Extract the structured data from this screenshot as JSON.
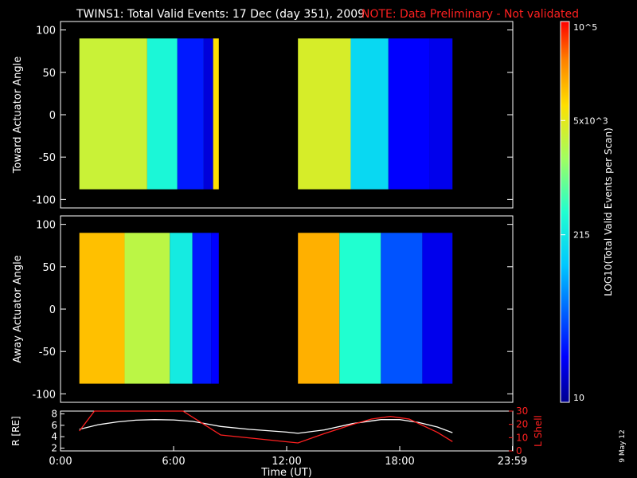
{
  "header": {
    "title": "TWINS1: Total Valid Events: 17 Dec (day 351), 2009",
    "note": "NOTE: Data Preliminary - Not validated",
    "note_color": "#ff2020",
    "stamp": "9 May 12"
  },
  "chart_data": [
    {
      "type": "heatmap",
      "panel": "top",
      "ylabel": "Toward Actuator Angle",
      "ylim": [
        -110,
        110
      ],
      "yticks": [
        "100",
        "50",
        "0",
        "-50",
        "-100"
      ],
      "ytick_values": [
        100,
        50,
        0,
        -50,
        -100
      ],
      "data_angle_range": [
        -88,
        90
      ],
      "data_intervals_hours": [
        [
          1.0,
          8.4
        ],
        [
          12.6,
          20.8
        ]
      ],
      "segments": [
        {
          "t0": 1.0,
          "t1": 4.6,
          "level": 0.7
        },
        {
          "t0": 4.6,
          "t1": 6.2,
          "level": 0.48
        },
        {
          "t0": 6.2,
          "t1": 7.6,
          "level": 0.15
        },
        {
          "t0": 7.6,
          "t1": 8.1,
          "level": 0.08
        },
        {
          "t0": 8.1,
          "t1": 8.4,
          "level": 0.78
        },
        {
          "t0": 12.6,
          "t1": 15.4,
          "level": 0.72
        },
        {
          "t0": 15.4,
          "t1": 17.4,
          "level": 0.4
        },
        {
          "t0": 17.4,
          "t1": 19.6,
          "level": 0.12
        },
        {
          "t0": 19.6,
          "t1": 20.8,
          "level": 0.1
        }
      ]
    },
    {
      "type": "heatmap",
      "panel": "middle",
      "ylabel": "Away Actuator Angle",
      "ylim": [
        -110,
        110
      ],
      "yticks": [
        "100",
        "50",
        "0",
        "-50",
        "-100"
      ],
      "ytick_values": [
        100,
        50,
        0,
        -50,
        -100
      ],
      "data_angle_range": [
        -88,
        90
      ],
      "data_intervals_hours": [
        [
          1.0,
          8.4
        ],
        [
          12.6,
          20.8
        ]
      ],
      "segments": [
        {
          "t0": 1.0,
          "t1": 3.4,
          "level": 0.82
        },
        {
          "t0": 3.4,
          "t1": 5.8,
          "level": 0.68
        },
        {
          "t0": 5.8,
          "t1": 7.0,
          "level": 0.45
        },
        {
          "t0": 7.0,
          "t1": 8.0,
          "level": 0.15
        },
        {
          "t0": 8.0,
          "t1": 8.4,
          "level": 0.12
        },
        {
          "t0": 12.6,
          "t1": 14.8,
          "level": 0.84
        },
        {
          "t0": 14.8,
          "t1": 17.0,
          "level": 0.5
        },
        {
          "t0": 17.0,
          "t1": 19.2,
          "level": 0.22
        },
        {
          "t0": 19.2,
          "t1": 20.8,
          "level": 0.1
        }
      ]
    },
    {
      "type": "line",
      "panel": "bottom",
      "xlabel": "Time (UT)",
      "xticks": [
        "0:00",
        "6:00",
        "12:00",
        "18:00",
        "23:59"
      ],
      "xtick_values": [
        0,
        6,
        12,
        18,
        23.98
      ],
      "xlim": [
        0,
        24
      ],
      "ylabel_left": "R [RE]",
      "ylim_left": [
        1.5,
        8.5
      ],
      "yticks_left": [
        "8",
        "6",
        "4",
        "2"
      ],
      "ytick_left_values": [
        8,
        6,
        4,
        2
      ],
      "ylabel_right": "L Shell",
      "ylim_right": [
        0,
        30
      ],
      "yticks_right": [
        "30",
        "20",
        "10",
        "0"
      ],
      "ytick_right_values": [
        30,
        20,
        10,
        0
      ],
      "series": [
        {
          "axis": "left",
          "color": "#ffffff",
          "x": [
            1.0,
            2.0,
            3.0,
            4.0,
            5.0,
            6.0,
            7.0,
            8.0,
            8.5,
            10.0,
            12.0,
            12.6,
            14.0,
            15.5,
            17.0,
            18.0,
            19.0,
            20.0,
            20.8
          ],
          "y": [
            5.3,
            6.1,
            6.6,
            6.9,
            7.0,
            6.95,
            6.7,
            6.1,
            5.8,
            5.3,
            4.8,
            4.6,
            5.2,
            6.3,
            7.0,
            7.0,
            6.5,
            5.7,
            4.7
          ]
        },
        {
          "axis": "right",
          "color": "#ff2020",
          "x": [
            1.0,
            1.8,
            2.0,
            6.0,
            6.5,
            8.5,
            12.6,
            14.0,
            15.5,
            16.5,
            17.5,
            18.5,
            20.0,
            20.8
          ],
          "y": [
            15,
            30,
            30,
            30,
            30,
            12,
            6,
            13,
            20,
            24,
            26,
            24,
            14,
            7
          ]
        }
      ]
    },
    {
      "type": "colorbar",
      "label": "LOG10(Total Valid Events per Scan)",
      "tick_labels": [
        "10^5",
        "5x10^3",
        "215",
        "10"
      ],
      "tick_levels": [
        1.0,
        0.74,
        0.44,
        0.0
      ]
    }
  ]
}
